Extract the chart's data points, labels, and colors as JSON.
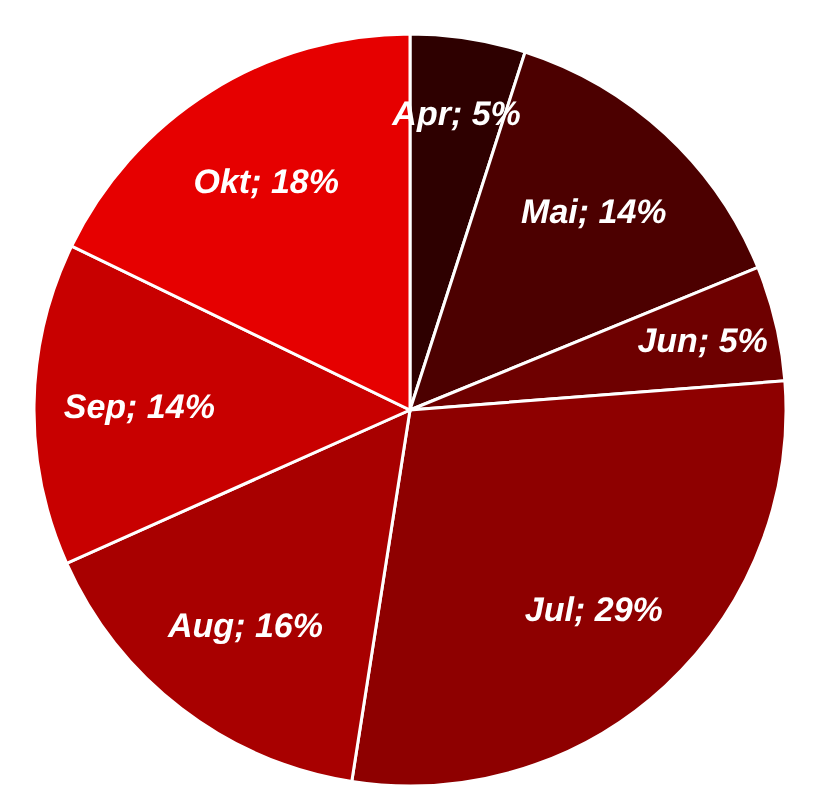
{
  "chart_data": {
    "type": "pie",
    "categories": [
      "Apr",
      "Mai",
      "Jun",
      "Jul",
      "Aug",
      "Sep",
      "Okt"
    ],
    "values": [
      5,
      14,
      5,
      29,
      16,
      14,
      18
    ],
    "colors": [
      "#2e0000",
      "#4c0000",
      "#6e0000",
      "#8e0000",
      "#a80000",
      "#c80000",
      "#e60000"
    ],
    "value_labels": [
      "; 5%",
      "; 14%",
      "; 5%",
      "; 29%",
      "; 16%",
      "; 14%",
      "; 18%"
    ],
    "legend": false
  }
}
